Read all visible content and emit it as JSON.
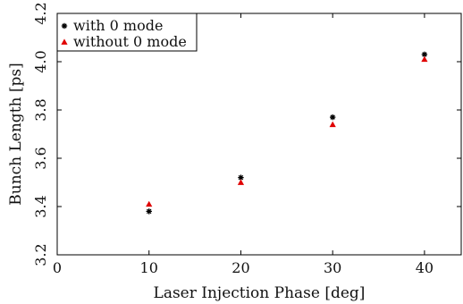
{
  "chart_data": {
    "type": "scatter",
    "xlabel": "Laser Injection Phase [deg]",
    "ylabel": "Bunch Length [ps]",
    "xlim": [
      0,
      44
    ],
    "ylim": [
      3.2,
      4.2
    ],
    "x_ticks": [
      "0",
      "10",
      "20",
      "30",
      "40"
    ],
    "y_ticks": [
      "3.2",
      "3.4",
      "3.6",
      "3.8",
      "4.0",
      "4.2"
    ],
    "grid": false,
    "legend_position": "top-left",
    "series": [
      {
        "name": "with 0 mode",
        "marker": "star",
        "color": "#000000",
        "x": [
          10,
          20,
          30,
          40
        ],
        "y": [
          3.38,
          3.52,
          3.77,
          4.03
        ]
      },
      {
        "name": "without 0 mode",
        "marker": "triangle",
        "color": "#e00000",
        "x": [
          10,
          20,
          30,
          40
        ],
        "y": [
          3.41,
          3.5,
          3.74,
          4.01
        ]
      }
    ]
  }
}
